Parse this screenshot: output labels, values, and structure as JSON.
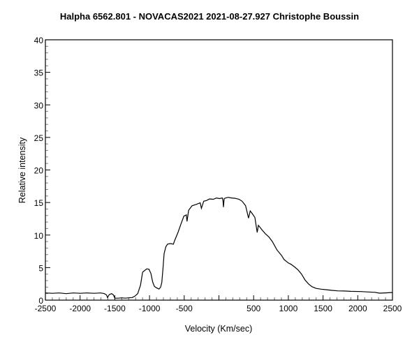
{
  "chart_data": {
    "type": "line",
    "title": "Halpha 6562.801 - NOVACAS2021   2021-08-27.927  Christophe Boussin",
    "xlabel": "Velocity (Km/sec)",
    "ylabel": "Relative intensity",
    "xlim": [
      -2500,
      2500
    ],
    "ylim": [
      0,
      40
    ],
    "x_ticks": [
      {
        "value": -2500,
        "label": "-2500"
      },
      {
        "value": -2000,
        "label": "-2000"
      },
      {
        "value": -1500,
        "label": "-1500"
      },
      {
        "value": -1000,
        "label": "-1000"
      },
      {
        "value": -500,
        "label": "-500"
      },
      {
        "value": 500,
        "label": "500"
      },
      {
        "value": 1000,
        "label": "1000"
      },
      {
        "value": 1500,
        "label": "1500"
      },
      {
        "value": 2000,
        "label": "2000"
      },
      {
        "value": 2500,
        "label": "2500"
      }
    ],
    "y_ticks": [
      {
        "value": 0,
        "label": "0"
      },
      {
        "value": 5,
        "label": "5"
      },
      {
        "value": 10,
        "label": "10"
      },
      {
        "value": 15,
        "label": "15"
      },
      {
        "value": 20,
        "label": "20"
      },
      {
        "value": 25,
        "label": "25"
      },
      {
        "value": 30,
        "label": "30"
      },
      {
        "value": 35,
        "label": "35"
      },
      {
        "value": 40,
        "label": "40"
      }
    ],
    "grid": false,
    "line_color": "#000000",
    "series": [
      {
        "x": [
          -2500,
          -2400,
          -2300,
          -2200,
          -2100,
          -2000,
          -1900,
          -1800,
          -1700,
          -1650,
          -1620,
          -1605,
          -1580,
          -1545,
          -1520,
          -1500,
          -1450,
          -1400,
          -1350,
          -1300,
          -1250,
          -1212,
          -1170,
          -1130,
          -1100,
          -1075,
          -1040,
          -1008,
          -980,
          -955,
          -930,
          -900,
          -863,
          -840,
          -823,
          -805,
          -790,
          -765,
          -740,
          -700,
          -656,
          -640,
          -590,
          -550,
          -505,
          -470,
          -460,
          -437,
          -387,
          -330,
          -270,
          -253,
          -219,
          -180,
          -136,
          -80,
          -35,
          10,
          48,
          58,
          65,
          75,
          100,
          133,
          180,
          233,
          290,
          334,
          384,
          427,
          451,
          480,
          518,
          551,
          568,
          620,
          669,
          720,
          770,
          837,
          900,
          938,
          1000,
          1039,
          1090,
          1139,
          1190,
          1240,
          1290,
          1340,
          1400,
          1474,
          1550,
          1630,
          1709,
          1800,
          1900,
          2045,
          2150,
          2250,
          2313,
          2400,
          2497
        ],
        "y": [
          1.1,
          1.05,
          1.1,
          1.0,
          1.1,
          1.05,
          1.1,
          1.05,
          1.1,
          1.0,
          0.8,
          0.4,
          0.85,
          1.0,
          0.8,
          0.3,
          0.3,
          0.35,
          0.3,
          0.35,
          0.4,
          0.6,
          1.0,
          2.3,
          4.3,
          4.5,
          4.8,
          4.75,
          4.1,
          2.8,
          2.1,
          1.9,
          1.7,
          2.0,
          2.7,
          5.0,
          7.15,
          8.2,
          8.6,
          8.7,
          8.6,
          9.1,
          10.4,
          11.6,
          12.9,
          13.1,
          12.1,
          13.8,
          14.5,
          14.7,
          14.95,
          14.1,
          15.2,
          15.3,
          15.55,
          15.5,
          15.7,
          15.6,
          15.7,
          15.3,
          14.3,
          15.6,
          15.7,
          15.8,
          15.7,
          15.65,
          15.5,
          15.2,
          14.5,
          12.6,
          13.7,
          13.3,
          12.7,
          10.4,
          11.5,
          10.8,
          10.2,
          9.7,
          9.0,
          7.7,
          6.9,
          6.25,
          5.7,
          5.5,
          5.1,
          4.65,
          4.0,
          3.1,
          2.5,
          2.07,
          1.8,
          1.68,
          1.6,
          1.5,
          1.43,
          1.4,
          1.35,
          1.32,
          1.25,
          1.2,
          1.07,
          1.12,
          1.18
        ]
      }
    ]
  }
}
